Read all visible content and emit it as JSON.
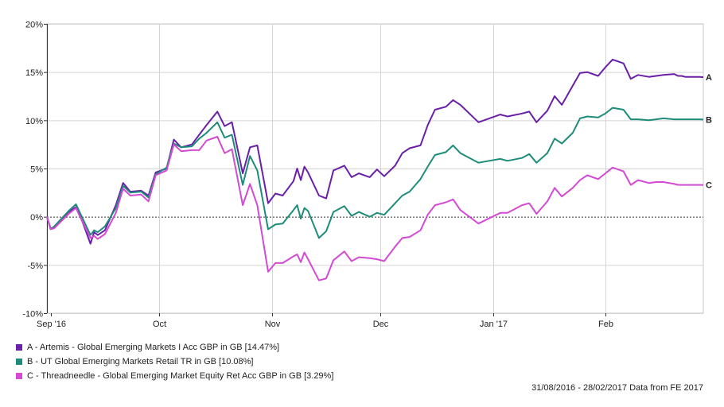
{
  "chart_data": {
    "type": "line",
    "date_range": "31/08/2016 - 28/02/2017 Data from FE 2017",
    "ylim": [
      -10,
      20
    ],
    "y_ticks": [
      "20%",
      "15%",
      "10%",
      "5%",
      "0%",
      "-5%",
      "-10%"
    ],
    "x_ticks": [
      "Sep '16",
      "Oct",
      "Nov",
      "Dec",
      "Jan '17",
      "Feb"
    ],
    "x_tick_dates": [
      "2016-09-01",
      "2016-10-01",
      "2016-11-01",
      "2016-12-01",
      "2017-01-01",
      "2017-02-01"
    ],
    "grid": true,
    "legend_position": "bottom",
    "x": [
      "2016-08-31",
      "2016-09-01",
      "2016-09-02",
      "2016-09-06",
      "2016-09-08",
      "2016-09-09",
      "2016-09-12",
      "2016-09-13",
      "2016-09-14",
      "2016-09-16",
      "2016-09-19",
      "2016-09-21",
      "2016-09-23",
      "2016-09-26",
      "2016-09-28",
      "2016-09-30",
      "2016-10-03",
      "2016-10-05",
      "2016-10-07",
      "2016-10-10",
      "2016-10-12",
      "2016-10-14",
      "2016-10-17",
      "2016-10-19",
      "2016-10-21",
      "2016-10-24",
      "2016-10-26",
      "2016-10-28",
      "2016-10-31",
      "2016-11-02",
      "2016-11-04",
      "2016-11-07",
      "2016-11-08",
      "2016-11-09",
      "2016-11-10",
      "2016-11-11",
      "2016-11-14",
      "2016-11-16",
      "2016-11-18",
      "2016-11-21",
      "2016-11-23",
      "2016-11-25",
      "2016-11-28",
      "2016-11-30",
      "2016-12-02",
      "2016-12-05",
      "2016-12-07",
      "2016-12-09",
      "2016-12-12",
      "2016-12-14",
      "2016-12-16",
      "2016-12-19",
      "2016-12-21",
      "2016-12-23",
      "2016-12-28",
      "2017-01-03",
      "2017-01-05",
      "2017-01-09",
      "2017-01-11",
      "2017-01-13",
      "2017-01-16",
      "2017-01-18",
      "2017-01-20",
      "2017-01-23",
      "2017-01-25",
      "2017-01-27",
      "2017-01-30",
      "2017-02-01",
      "2017-02-03",
      "2017-02-06",
      "2017-02-08",
      "2017-02-10",
      "2017-02-13",
      "2017-02-15",
      "2017-02-17",
      "2017-02-20",
      "2017-02-21",
      "2017-02-22",
      "2017-02-23",
      "2017-02-24",
      "2017-02-27",
      "2017-02-28"
    ],
    "series": [
      {
        "label": "A",
        "name": "A - Artemis - Global Emerging Markets I Acc GBP in GB [14.47%]",
        "color": "#6a1fa8",
        "values": [
          0,
          -1.2,
          -1.1,
          0.5,
          1.0,
          0.3,
          -2.8,
          -1.6,
          -1.9,
          -1.4,
          1.2,
          3.5,
          2.6,
          2.7,
          2.2,
          4.6,
          5.0,
          8.0,
          7.2,
          7.5,
          8.5,
          9.5,
          10.9,
          9.4,
          9.8,
          4.5,
          7.2,
          7.4,
          1.4,
          2.4,
          2.2,
          3.7,
          5.0,
          3.8,
          5.2,
          4.6,
          2.2,
          1.9,
          4.8,
          5.3,
          4.1,
          4.5,
          4.1,
          4.9,
          4.2,
          5.3,
          6.6,
          7.1,
          7.4,
          9.5,
          11.1,
          11.4,
          12.1,
          11.6,
          9.8,
          10.6,
          10.4,
          10.7,
          10.9,
          9.8,
          11.0,
          12.5,
          11.6,
          13.6,
          14.9,
          15.0,
          14.6,
          15.5,
          16.3,
          15.9,
          14.3,
          14.7,
          14.5,
          14.6,
          14.7,
          14.8,
          14.6,
          14.6,
          14.5,
          14.5,
          14.5,
          14.47
        ]
      },
      {
        "label": "B",
        "name": "B - UT Global Emerging Markets Retail TR in GB [10.08%]",
        "color": "#1e8c7a",
        "values": [
          0,
          -1.3,
          -1.0,
          0.6,
          1.3,
          0.5,
          -1.9,
          -1.4,
          -1.6,
          -1.0,
          0.9,
          3.2,
          2.5,
          2.6,
          2.0,
          4.4,
          5.1,
          7.6,
          7.2,
          7.3,
          8.1,
          8.7,
          9.8,
          8.2,
          8.5,
          3.3,
          6.3,
          4.8,
          -1.3,
          -0.8,
          -0.7,
          0.7,
          1.2,
          -0.2,
          0.9,
          0.6,
          -2.2,
          -1.5,
          0.5,
          1.1,
          0.1,
          0.5,
          0,
          0.4,
          0.2,
          1.4,
          2.2,
          2.6,
          3.9,
          5.2,
          6.4,
          6.7,
          7.4,
          6.6,
          5.6,
          6.0,
          5.8,
          6.1,
          6.5,
          5.6,
          6.6,
          8.1,
          7.6,
          8.7,
          10.2,
          10.4,
          10.3,
          10.7,
          11.3,
          11.1,
          10.1,
          10.1,
          10.0,
          10.1,
          10.2,
          10.1,
          10.1,
          10.1,
          10.1,
          10.1,
          10.1,
          10.08
        ]
      },
      {
        "label": "C",
        "name": "C - Threadneedle - Global Emerging Market Equity Ret Acc GBP in GB [3.29%]",
        "color": "#d24bd2",
        "values": [
          0,
          -1.3,
          -1.2,
          0.3,
          0.9,
          0.1,
          -2.2,
          -2.0,
          -2.3,
          -1.8,
          0.4,
          2.9,
          2.2,
          2.3,
          1.6,
          4.3,
          4.8,
          7.5,
          6.8,
          6.9,
          6.9,
          7.9,
          8.3,
          6.6,
          7.0,
          1.2,
          3.4,
          1.2,
          -5.7,
          -4.8,
          -4.8,
          -4.1,
          -3.9,
          -4.7,
          -3.7,
          -4.4,
          -6.6,
          -6.4,
          -4.5,
          -3.6,
          -4.6,
          -4.2,
          -4.3,
          -4.4,
          -4.6,
          -3.1,
          -2.2,
          -2.1,
          -1.4,
          0.2,
          1.2,
          1.5,
          1.8,
          0.7,
          -0.7,
          0.4,
          0.4,
          1.2,
          1.4,
          0.3,
          1.6,
          3.0,
          2.1,
          3.0,
          3.8,
          4.3,
          3.9,
          4.5,
          5.1,
          4.7,
          3.3,
          3.8,
          3.5,
          3.6,
          3.6,
          3.4,
          3.3,
          3.3,
          3.3,
          3.3,
          3.3,
          3.29
        ]
      }
    ]
  }
}
